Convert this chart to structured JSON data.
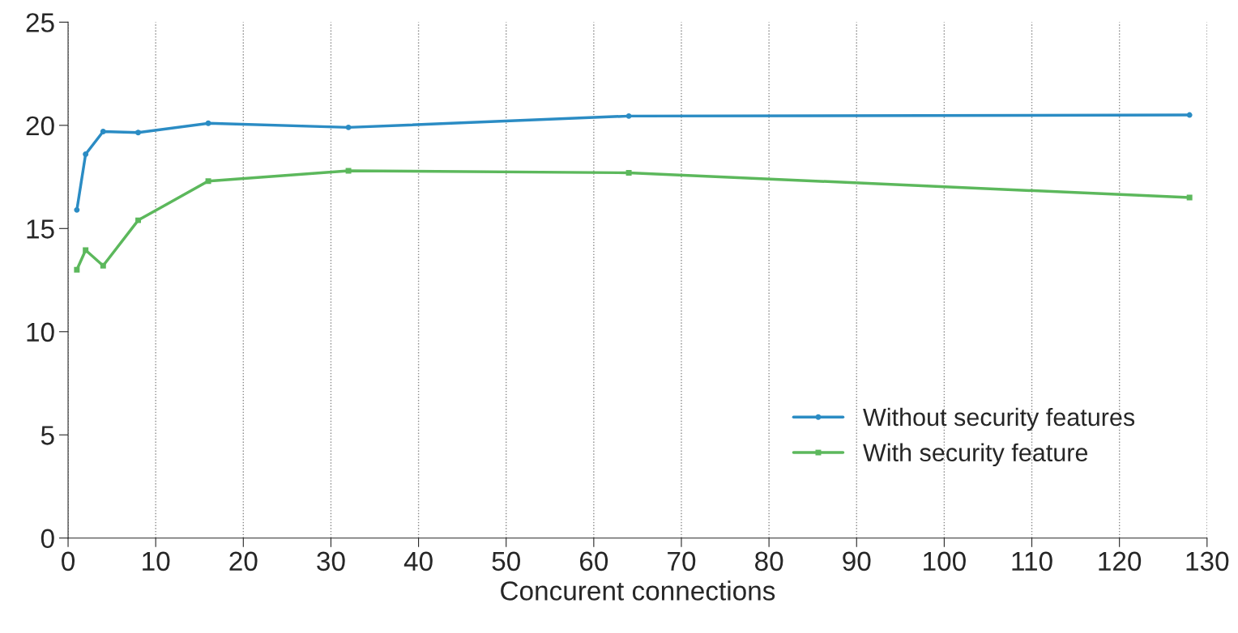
{
  "chart_data": {
    "type": "line",
    "xlabel": "Concurent connections",
    "x": [
      1,
      2,
      4,
      8,
      16,
      32,
      64,
      128
    ],
    "series": [
      {
        "name": "Without security features",
        "color": "#2b8cc4",
        "marker": "circle",
        "values": [
          15.9,
          18.6,
          19.7,
          19.65,
          20.1,
          19.9,
          20.45,
          20.5
        ]
      },
      {
        "name": "With security feature",
        "color": "#5cb85c",
        "marker": "square",
        "values": [
          13.0,
          13.95,
          13.2,
          15.4,
          17.3,
          17.8,
          17.7,
          16.5
        ]
      }
    ],
    "xlim": [
      0,
      130
    ],
    "xticks": [
      0,
      10,
      20,
      30,
      40,
      50,
      60,
      70,
      80,
      90,
      100,
      110,
      120,
      130
    ],
    "ylim": [
      0,
      25
    ],
    "yticks": [
      0,
      5,
      10,
      15,
      20,
      25
    ],
    "grid": "x",
    "legend": "bottom right",
    "line_style": "solid"
  }
}
